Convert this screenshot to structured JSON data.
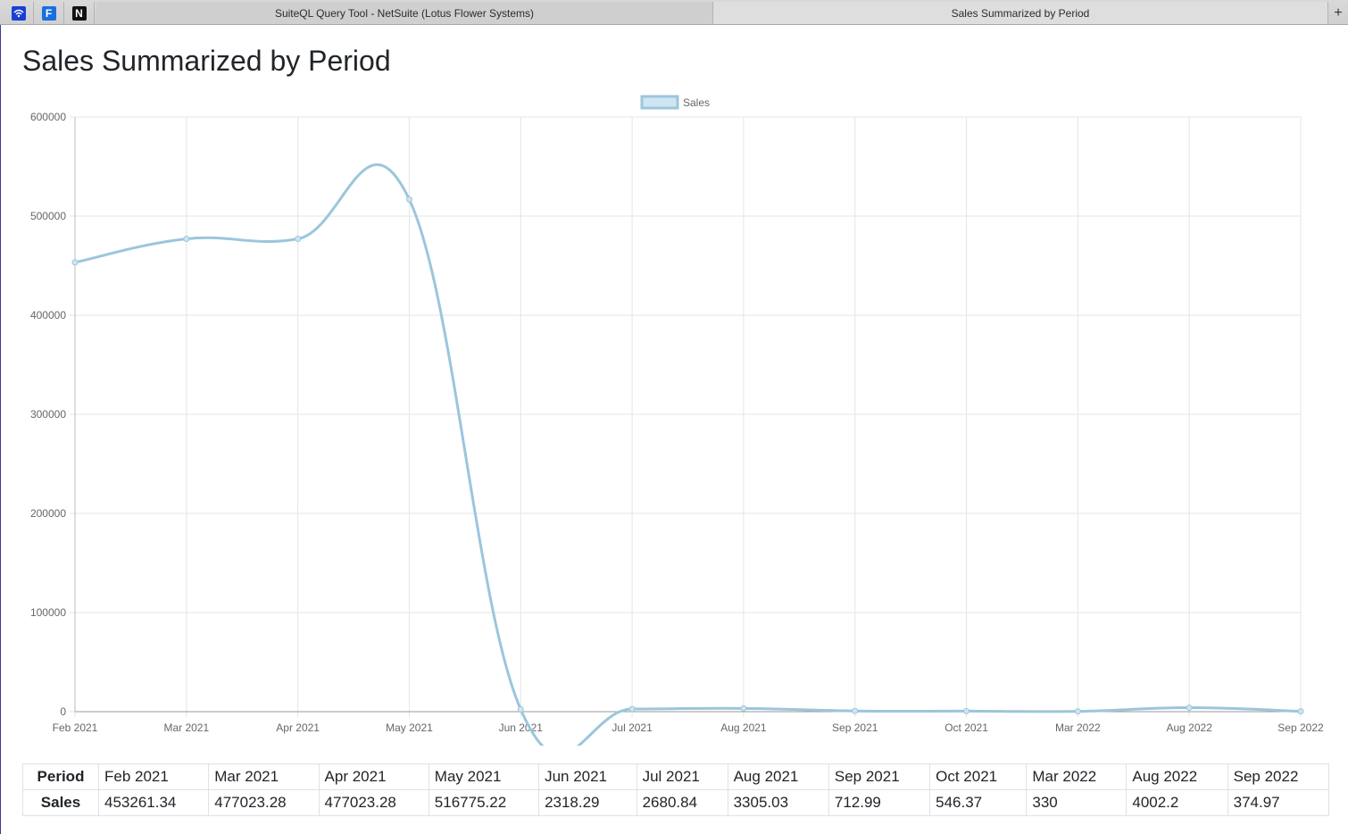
{
  "tabs": {
    "pinned": [
      {
        "icon": "sxm-wifi-icon",
        "color": "#1a3fd6"
      },
      {
        "icon": "f-icon",
        "label": "F",
        "color": "#1a6fe0"
      },
      {
        "icon": "n-icon",
        "label": "N",
        "color": "#111111"
      }
    ],
    "open": [
      {
        "label": "SuiteQL Query Tool - NetSuite (Lotus Flower Systems)",
        "active": false
      },
      {
        "label": "Sales Summarized by Period",
        "active": true
      }
    ],
    "new_tab": "+"
  },
  "page": {
    "title": "Sales Summarized by Period"
  },
  "chart_data": {
    "type": "line",
    "categories": [
      "Feb 2021",
      "Mar 2021",
      "Apr 2021",
      "May 2021",
      "Jun 2021",
      "Jul 2021",
      "Aug 2021",
      "Sep 2021",
      "Oct 2021",
      "Mar 2022",
      "Aug 2022",
      "Sep 2022"
    ],
    "series": [
      {
        "name": "Sales",
        "values": [
          453261.34,
          477023.28,
          477023.28,
          516775.22,
          2318.29,
          2680.84,
          3305.03,
          712.99,
          546.37,
          330,
          4002.2,
          374.97
        ]
      }
    ],
    "ylim": [
      0,
      600000
    ],
    "yticks": [
      "600000",
      "500000",
      "400000",
      "300000",
      "200000",
      "100000",
      "0"
    ],
    "legend": "top-center",
    "grid": true,
    "colors": {
      "line": "#9bc6dc",
      "fill": "#cfe5f1"
    }
  },
  "table": {
    "period_label": "Period",
    "sales_label": "Sales",
    "periods": [
      "Feb 2021",
      "Mar 2021",
      "Apr 2021",
      "May 2021",
      "Jun 2021",
      "Jul 2021",
      "Aug 2021",
      "Sep 2021",
      "Oct 2021",
      "Mar 2022",
      "Aug 2022",
      "Sep 2022"
    ],
    "sales": [
      "453261.34",
      "477023.28",
      "477023.28",
      "516775.22",
      "2318.29",
      "2680.84",
      "3305.03",
      "712.99",
      "546.37",
      "330",
      "4002.2",
      "374.97"
    ]
  }
}
